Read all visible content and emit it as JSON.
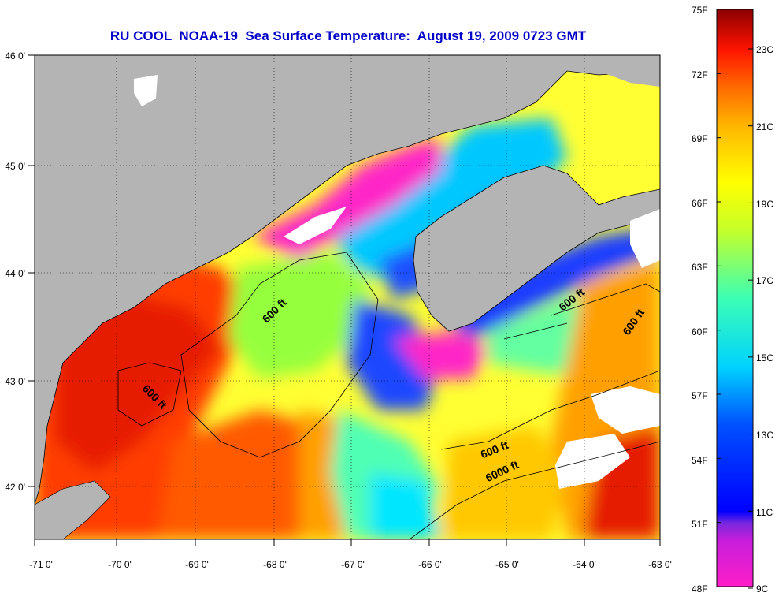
{
  "title": "RU COOL  NOAA-19  Sea Surface Temperature:  August 19, 2009 0723 GMT",
  "axes": {
    "lon_ticks": [
      "-71 0'",
      "-70 0'",
      "-69 0'",
      "-68 0'",
      "-67 0'",
      "-66 0'",
      "-65 0'",
      "-64 0'",
      "-63 0'"
    ],
    "lat_ticks": [
      "46 0'",
      "45 0'",
      "44 0'",
      "43 0'",
      "42 0'"
    ],
    "lon_range": [
      -71,
      -63
    ],
    "lat_range": [
      41.5,
      46
    ]
  },
  "contour_labels": [
    {
      "text": "600 ft",
      "lon": -67.9,
      "lat": 43.6,
      "angle": -45
    },
    {
      "text": "600 ft",
      "lon": -69.5,
      "lat": 42.8,
      "angle": 45
    },
    {
      "text": "600 ft",
      "lon": -64.1,
      "lat": 43.7,
      "angle": -38
    },
    {
      "text": "600 ft",
      "lon": -63.3,
      "lat": 43.5,
      "angle": -55
    },
    {
      "text": "600 ft",
      "lon": -65.1,
      "lat": 42.3,
      "angle": -22
    },
    {
      "text": "6000 ft",
      "lon": -65.0,
      "lat": 42.1,
      "angle": -25
    }
  ],
  "colorbar": {
    "f_labels": [
      "75F",
      "72F",
      "69F",
      "66F",
      "63F",
      "60F",
      "57F",
      "54F",
      "51F",
      "48F"
    ],
    "c_labels": [
      "23C",
      "21C",
      "19C",
      "17C",
      "15C",
      "13C",
      "11C",
      "9C"
    ],
    "range_f": [
      48,
      75
    ],
    "colors": {
      "pink": "#ff1ec8",
      "purple": "#8c1edc",
      "blue": "#0a0aff",
      "cyan": "#00e6ff",
      "green": "#8cff3c",
      "yellow": "#ffff00",
      "orange": "#ff8c00",
      "red": "#ff1e00",
      "darkred": "#8c0000"
    }
  },
  "map_colors": {
    "land": "#b4b4b4",
    "cloud": "#ffffff"
  }
}
